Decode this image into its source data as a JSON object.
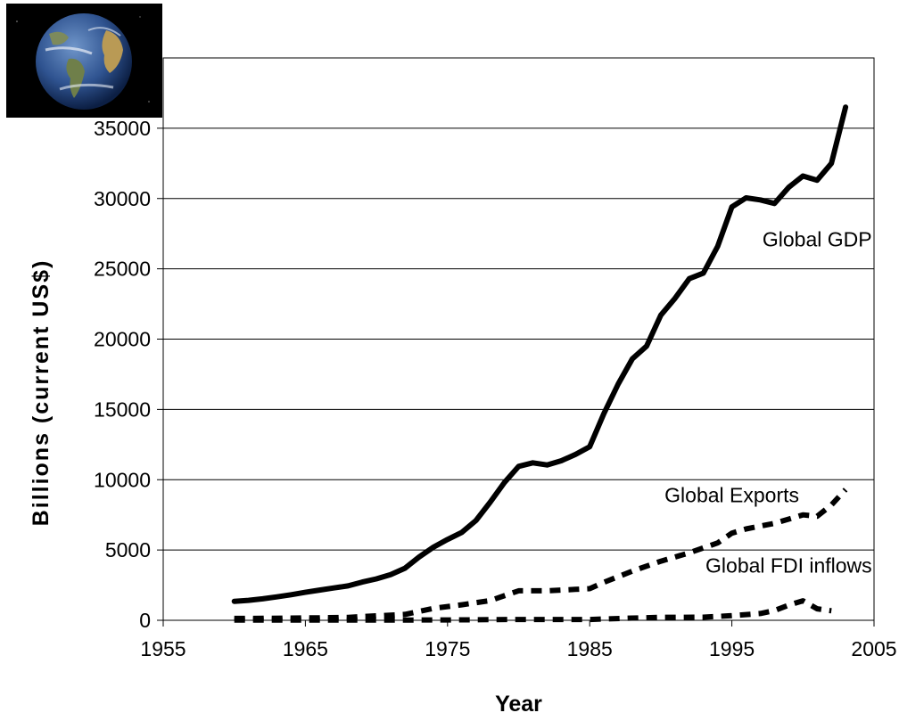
{
  "chart_data": {
    "type": "line",
    "title": "",
    "xlabel": "Year",
    "ylabel": "Billions (current US$)",
    "xlim": [
      1955,
      2005
    ],
    "ylim": [
      0,
      40000
    ],
    "x_ticks": [
      1955,
      1965,
      1975,
      1985,
      1995,
      2005
    ],
    "y_ticks": [
      0,
      5000,
      10000,
      15000,
      20000,
      25000,
      30000,
      35000
    ],
    "grid": "horizontal",
    "series": [
      {
        "name": "Global GDP",
        "style": "solid",
        "x": [
          1960,
          1961,
          1962,
          1963,
          1964,
          1965,
          1966,
          1967,
          1968,
          1969,
          1970,
          1971,
          1972,
          1973,
          1974,
          1975,
          1976,
          1977,
          1978,
          1979,
          1980,
          1981,
          1982,
          1983,
          1984,
          1985,
          1986,
          1987,
          1988,
          1989,
          1990,
          1991,
          1992,
          1993,
          1994,
          1995,
          1996,
          1997,
          1998,
          1999,
          2000,
          2001,
          2002,
          2003
        ],
        "values": [
          1350,
          1420,
          1530,
          1670,
          1820,
          1990,
          2150,
          2300,
          2450,
          2720,
          2950,
          3250,
          3700,
          4500,
          5200,
          5750,
          6250,
          7100,
          8400,
          9800,
          10950,
          11200,
          11050,
          11350,
          11800,
          12350,
          14700,
          16800,
          18600,
          19500,
          21700,
          22900,
          24300,
          24700,
          26600,
          29400,
          30050,
          29900,
          29650,
          30800,
          31600,
          31300,
          32500,
          36500
        ]
      },
      {
        "name": "Global Exports",
        "style": "dashed",
        "x": [
          1960,
          1962,
          1964,
          1966,
          1968,
          1970,
          1972,
          1974,
          1976,
          1978,
          1980,
          1982,
          1984,
          1985,
          1986,
          1988,
          1990,
          1992,
          1994,
          1995,
          1996,
          1998,
          2000,
          2001,
          2002,
          2003
        ],
        "values": [
          130,
          140,
          160,
          180,
          210,
          320,
          420,
          850,
          1100,
          1400,
          2100,
          2100,
          2200,
          2250,
          2700,
          3500,
          4200,
          4800,
          5500,
          6200,
          6500,
          6900,
          7500,
          7400,
          8200,
          9300
        ]
      },
      {
        "name": "Global FDI inflows",
        "style": "dashed",
        "x": [
          1960,
          1965,
          1970,
          1975,
          1980,
          1985,
          1988,
          1990,
          1993,
          1995,
          1997,
          1998,
          1999,
          2000,
          2001,
          2002
        ],
        "values": [
          10,
          12,
          14,
          25,
          55,
          60,
          160,
          210,
          220,
          330,
          480,
          690,
          1080,
          1390,
          820,
          680
        ]
      }
    ],
    "annotations": [
      {
        "text": "Global GDP",
        "series": 0
      },
      {
        "text": "Global Exports",
        "series": 1
      },
      {
        "text": "Global FDI inflows",
        "series": 2
      }
    ]
  }
}
